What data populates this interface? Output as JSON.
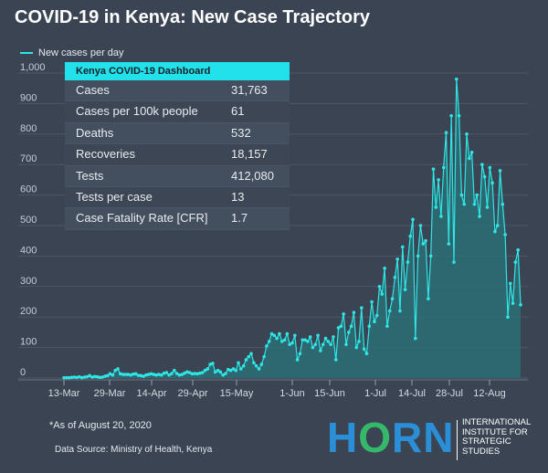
{
  "title": "COVID-19 in Kenya: New Case Trajectory",
  "legend_label": "New cases per day",
  "colors": {
    "line": "#2ee6e6",
    "area": "#2c6f76",
    "background": "#3a4453",
    "dash_header": "#22e1ea"
  },
  "dashboard": {
    "title": "Kenya COVID-19 Dashboard",
    "rows": [
      {
        "label": "Cases",
        "value": "31,763"
      },
      {
        "label": "Cases per 100k people",
        "value": "61"
      },
      {
        "label": "Deaths",
        "value": "532"
      },
      {
        "label": "Recoveries",
        "value": "18,157"
      },
      {
        "label": "Tests",
        "value": "412,080"
      },
      {
        "label": "Tests per case",
        "value": "13"
      },
      {
        "label": "Case Fatality Rate [CFR]",
        "value": "1.7"
      }
    ]
  },
  "footnote": "*As of August 20, 2020",
  "source": "Data Source: Ministry of Health, Kenya",
  "logo": {
    "part1": "H",
    "part2": "O",
    "part3": "RN",
    "org_lines": [
      "INTERNATIONAL",
      "INSTITUTE FOR",
      "STRATEGIC",
      "STUDIES"
    ]
  },
  "chart_data": {
    "type": "area",
    "x_start": "13-Mar",
    "x_end": "19-Aug",
    "xtick_labels": [
      "13-Mar",
      "29-Mar",
      "14-Apr",
      "29-Apr",
      "15-May",
      "1-Jun",
      "15-Jun",
      "1-Jul",
      "14-Jul",
      "28-Jul",
      "12-Aug"
    ],
    "yticks": [
      0,
      100,
      200,
      300,
      400,
      500,
      600,
      700,
      800,
      900,
      1000
    ],
    "ytick_labels": [
      "0",
      "100",
      "200",
      "300",
      "400",
      "500",
      "600",
      "700",
      "800",
      "900",
      "1,000"
    ],
    "ylim": [
      0,
      1000
    ],
    "grid": true,
    "legend_position": "top-left",
    "series": [
      {
        "name": "New cases per day",
        "values": [
          1,
          1,
          1,
          2,
          3,
          2,
          4,
          1,
          3,
          4,
          8,
          3,
          5,
          4,
          2,
          3,
          6,
          8,
          14,
          10,
          25,
          30,
          14,
          12,
          12,
          12,
          10,
          13,
          14,
          9,
          8,
          6,
          10,
          12,
          14,
          12,
          10,
          12,
          10,
          16,
          18,
          10,
          15,
          25,
          15,
          10,
          12,
          16,
          20,
          18,
          14,
          15,
          14,
          16,
          18,
          25,
          30,
          45,
          48,
          20,
          25,
          20,
          10,
          15,
          28,
          25,
          30,
          25,
          50,
          30,
          40,
          60,
          70,
          80,
          50,
          40,
          30,
          45,
          70,
          105,
          120,
          145,
          140,
          130,
          145,
          120,
          125,
          145,
          110,
          115,
          140,
          60,
          80,
          125,
          125,
          120,
          135,
          100,
          110,
          140,
          90,
          110,
          130,
          120,
          110,
          135,
          60,
          165,
          170,
          210,
          110,
          150,
          170,
          215,
          100,
          120,
          230,
          95,
          80,
          170,
          250,
          185,
          205,
          300,
          275,
          360,
          170,
          220,
          260,
          330,
          390,
          220,
          430,
          290,
          380,
          465,
          520,
          130,
          400,
          500,
          440,
          450,
          260,
          400,
          685,
          560,
          650,
          530,
          690,
          805,
          440,
          860,
          380,
          980,
          860,
          600,
          570,
          800,
          720,
          740,
          570,
          600,
          530,
          700,
          660,
          560,
          690,
          640,
          480,
          500,
          680,
          570,
          470,
          200,
          310,
          245,
          380,
          420,
          240
        ]
      }
    ]
  }
}
